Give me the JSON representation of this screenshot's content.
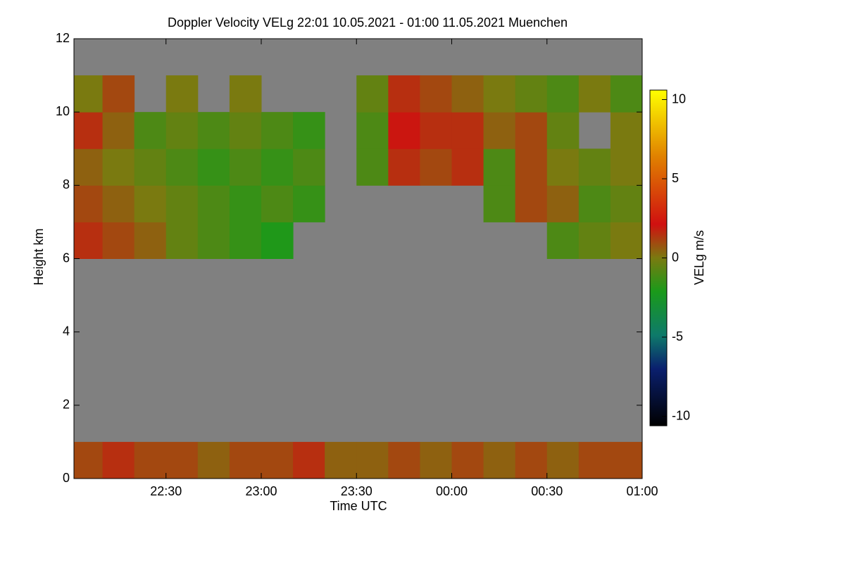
{
  "chart_data": {
    "type": "heatmap",
    "title": "Doppler Velocity VELg   22:01 10.05.2021 - 01:00 11.05.2021 Muenchen",
    "x_label": "Time UTC",
    "y_label": "Height km",
    "colorbar_label": "VELg m/s",
    "xlim": [
      22.0167,
      25.0
    ],
    "xticks": [
      {
        "value": 22.5,
        "label": "22:30"
      },
      {
        "value": 23.0,
        "label": "23:00"
      },
      {
        "value": 23.5,
        "label": "23:30"
      },
      {
        "value": 24.0,
        "label": "00:00"
      },
      {
        "value": 24.5,
        "label": "00:30"
      },
      {
        "value": 25.0,
        "label": "01:00"
      }
    ],
    "ylim": [
      0,
      12
    ],
    "yticks": [
      0,
      2,
      4,
      6,
      8,
      10,
      12
    ],
    "clim": [
      -10.6,
      10.6
    ],
    "cticks": [
      -10,
      -5,
      0,
      5,
      10
    ],
    "xbins": [
      22.0167,
      22.1667,
      22.3333,
      22.5,
      22.6667,
      22.8333,
      23.0,
      23.1667,
      23.3333,
      23.5,
      23.6667,
      23.8333,
      24.0,
      24.1667,
      24.3333,
      24.5,
      24.6667,
      24.8333,
      25.0
    ],
    "ybins": [
      0,
      1,
      2,
      3,
      4,
      5,
      6,
      7,
      8,
      9,
      10,
      11,
      12
    ],
    "z": [
      [
        1,
        1.5,
        1,
        1,
        0.5,
        1,
        1,
        1.5,
        0.5,
        0.5,
        1,
        0.5,
        1,
        0.5,
        1,
        0.5,
        1,
        1
      ],
      [
        null,
        null,
        null,
        null,
        null,
        null,
        null,
        null,
        null,
        null,
        null,
        null,
        null,
        null,
        null,
        null,
        null,
        null
      ],
      [
        null,
        null,
        null,
        null,
        null,
        null,
        null,
        null,
        null,
        null,
        null,
        null,
        null,
        null,
        null,
        null,
        null,
        null
      ],
      [
        null,
        null,
        null,
        null,
        null,
        null,
        null,
        null,
        null,
        null,
        null,
        null,
        null,
        null,
        null,
        null,
        null,
        null
      ],
      [
        null,
        null,
        null,
        null,
        null,
        null,
        null,
        null,
        null,
        null,
        null,
        null,
        null,
        null,
        null,
        null,
        null,
        null
      ],
      [
        null,
        null,
        null,
        null,
        null,
        null,
        null,
        null,
        null,
        null,
        null,
        null,
        null,
        null,
        null,
        null,
        null,
        null
      ],
      [
        1.5,
        1,
        0.5,
        -0.5,
        -1,
        -1.5,
        -2,
        null,
        null,
        null,
        null,
        null,
        null,
        null,
        null,
        -1,
        -0.5,
        0
      ],
      [
        1,
        0.5,
        0,
        -0.5,
        -1,
        -1.5,
        -1,
        -1.5,
        null,
        null,
        null,
        null,
        null,
        -1,
        1,
        0.5,
        -1,
        -0.5
      ],
      [
        0.5,
        0,
        -0.5,
        -1,
        -1.5,
        -1,
        -1.5,
        -1,
        null,
        -1,
        1.5,
        1,
        1.5,
        -1,
        1,
        0,
        -0.5,
        0
      ],
      [
        1.5,
        0.5,
        -1,
        -0.5,
        -1,
        -0.5,
        -1,
        -1.5,
        null,
        -1,
        2,
        1.5,
        1.5,
        0.5,
        1,
        -0.5,
        null,
        0
      ],
      [
        0,
        1,
        null,
        0,
        null,
        0,
        null,
        null,
        null,
        -0.5,
        1.5,
        1,
        0.5,
        0,
        -0.5,
        -1,
        0,
        -1
      ],
      [
        null,
        null,
        null,
        null,
        null,
        null,
        null,
        null,
        null,
        null,
        null,
        null,
        null,
        null,
        null,
        null,
        null,
        null
      ]
    ]
  }
}
